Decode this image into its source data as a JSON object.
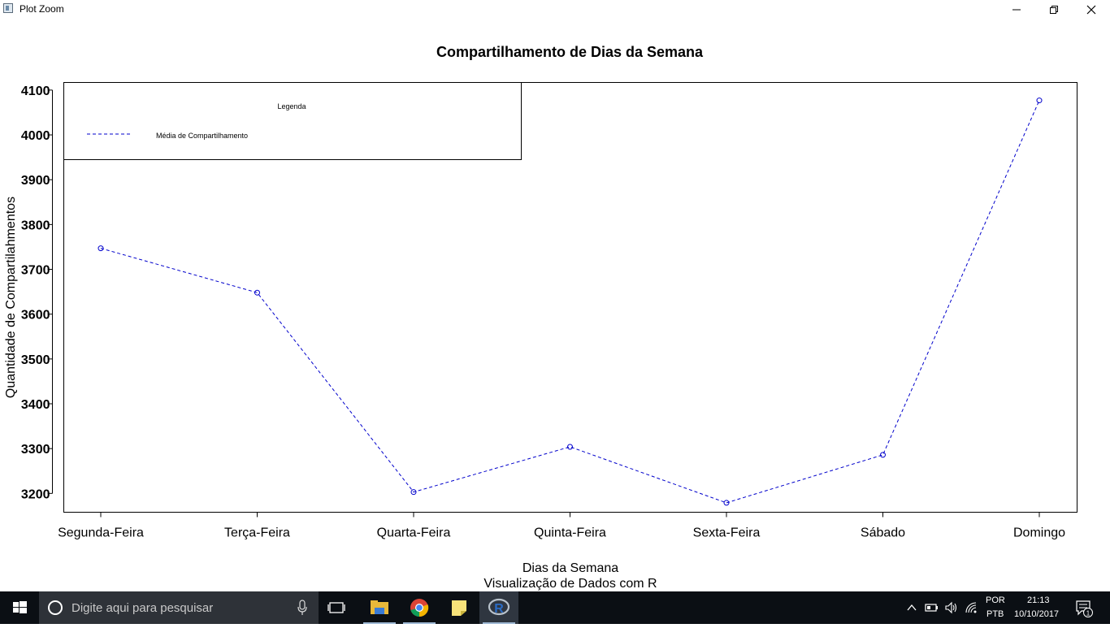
{
  "window": {
    "title": "Plot Zoom",
    "minimize_icon": "minimize-icon",
    "maximize_icon": "restore-icon",
    "close_icon": "close-icon"
  },
  "chart_data": {
    "type": "line",
    "title": "Compartilhamento de Dias da Semana",
    "xlabel": "Dias da Semana",
    "subtitle": "Visualização de Dados com R",
    "ylabel": "Quantidade de Compartilahmentos",
    "categories": [
      "Segunda-Feira",
      "Terça-Feira",
      "Quarta-Feira",
      "Quinta-Feira",
      "Sexta-Feira",
      "Sábado",
      "Domingo"
    ],
    "series": [
      {
        "name": "Média de Compartilhamento",
        "values": [
          3747,
          3648,
          3203,
          3304,
          3179,
          3286,
          4077
        ],
        "color": "#0000cc",
        "line_style": "dashed",
        "marker": "circle"
      }
    ],
    "yticks": [
      3200,
      3300,
      3400,
      3500,
      3600,
      3700,
      3800,
      3900,
      4000,
      4100
    ],
    "ylim": [
      3158,
      4117
    ],
    "grid": false,
    "legend": {
      "title": "Legenda",
      "entries": [
        "Média de Compartilhamento"
      ],
      "position": "top-left"
    }
  },
  "taskbar": {
    "search_placeholder": "Digite aqui para pesquisar",
    "start_icon": "windows-logo-icon",
    "apps": [
      "task-view-icon",
      "file-explorer-icon",
      "chrome-icon",
      "sticky-notes-icon",
      "r-icon"
    ],
    "tray": {
      "lang_top": "POR",
      "lang_bottom": "PTB",
      "time": "21:13",
      "date": "10/10/2017",
      "notifications": "1"
    }
  },
  "colors": {
    "series": "#0000cc",
    "taskbar": "#0b0f14",
    "search_box": "#2e3238"
  }
}
